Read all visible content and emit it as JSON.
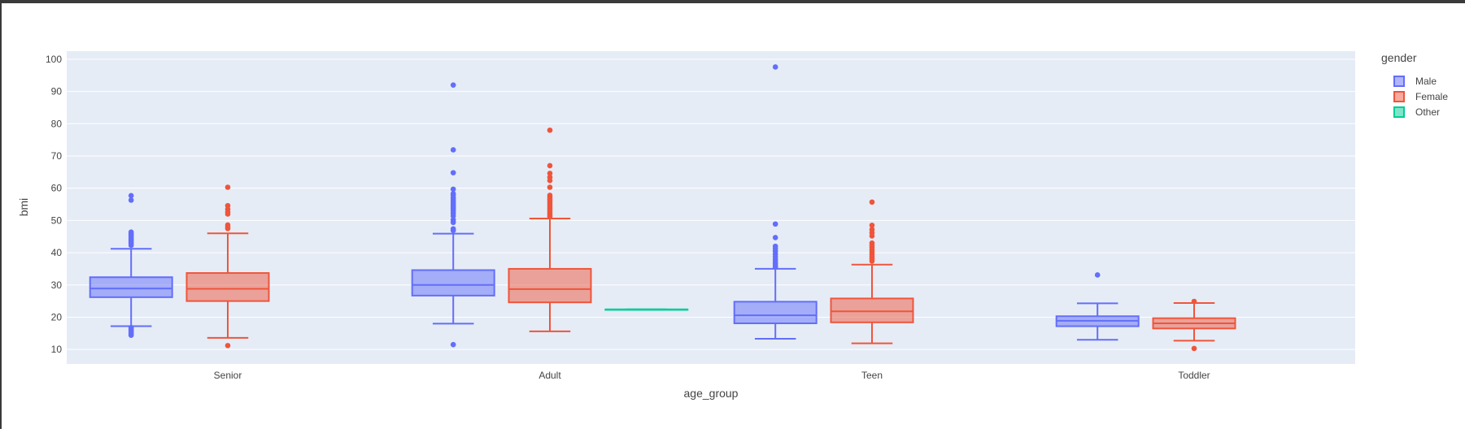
{
  "chart_data": {
    "type": "box",
    "xlabel": "age_group",
    "ylabel": "bmi",
    "yticks": [
      10,
      20,
      30,
      40,
      50,
      60,
      70,
      80,
      90,
      100
    ],
    "ylim": [
      5.5,
      102.5
    ],
    "grid": true,
    "categories": [
      "Senior",
      "Adult",
      "Teen",
      "Toddler"
    ],
    "legend": {
      "title": "gender",
      "position": "right",
      "entries": [
        "Male",
        "Female",
        "Other"
      ]
    },
    "series": [
      {
        "name": "Male",
        "color": "#636efa",
        "boxes": [
          {
            "category": "Senior",
            "min": 17.2,
            "q1": 26.2,
            "median": 28.9,
            "q3": 32.4,
            "max": 41.2,
            "outliers": [
              57.7,
              56.3,
              46.4,
              45.9,
              45.5,
              45.2,
              44.8,
              44.3,
              43.9,
              43.4,
              42.9,
              42.3,
              16.8,
              16.4,
              16.0,
              15.6,
              15.2,
              14.8,
              14.4
            ]
          },
          {
            "category": "Adult",
            "min": 18.0,
            "q1": 26.7,
            "median": 30.0,
            "q3": 34.6,
            "max": 45.9,
            "outliers": [
              92.0,
              71.9,
              64.8,
              59.7,
              58.3,
              57.8,
              57.0,
              56.4,
              55.8,
              55.2,
              54.7,
              54.1,
              53.6,
              53.0,
              52.2,
              51.4,
              50.2,
              49.4,
              47.4,
              46.9,
              11.5
            ]
          },
          {
            "category": "Teen",
            "min": 13.3,
            "q1": 18.1,
            "median": 20.6,
            "q3": 24.8,
            "max": 35.0,
            "outliers": [
              97.6,
              48.9,
              44.7,
              42.0,
              41.3,
              40.5,
              39.6,
              38.8,
              38.0,
              37.3,
              36.6,
              36.0,
              35.5
            ]
          },
          {
            "category": "Toddler",
            "min": 13.0,
            "q1": 17.2,
            "median": 18.9,
            "q3": 20.3,
            "max": 24.3,
            "outliers": [
              33.1
            ]
          }
        ]
      },
      {
        "name": "Female",
        "color": "#ef553b",
        "boxes": [
          {
            "category": "Senior",
            "min": 13.6,
            "q1": 25.0,
            "median": 28.8,
            "q3": 33.7,
            "max": 46.0,
            "outliers": [
              60.3,
              54.6,
              53.5,
              52.6,
              52.0,
              48.6,
              48.0,
              47.5,
              11.2
            ]
          },
          {
            "category": "Adult",
            "min": 15.6,
            "q1": 24.6,
            "median": 28.7,
            "q3": 35.0,
            "max": 50.6,
            "outliers": [
              78.0,
              67.0,
              64.6,
              63.4,
              62.4,
              60.3,
              57.8,
              57.2,
              56.6,
              56.0,
              55.4,
              54.8,
              54.2,
              53.6,
              53.0,
              52.4,
              51.8,
              51.2
            ]
          },
          {
            "category": "Teen",
            "min": 11.9,
            "q1": 18.4,
            "median": 21.8,
            "q3": 25.8,
            "max": 36.3,
            "outliers": [
              55.7,
              48.5,
              47.2,
              46.2,
              45.2,
              43.0,
              42.3,
              41.6,
              40.9,
              40.2,
              39.5,
              38.8,
              38.1,
              37.4
            ]
          },
          {
            "category": "Toddler",
            "min": 12.7,
            "q1": 16.5,
            "median": 18.1,
            "q3": 19.7,
            "max": 24.4,
            "outliers": [
              24.9,
              10.3
            ]
          }
        ]
      },
      {
        "name": "Other",
        "color": "#00cc96",
        "boxes": [
          {
            "category": "Adult",
            "min": 22.4,
            "q1": 22.4,
            "median": 22.4,
            "q3": 22.4,
            "max": 22.4,
            "outliers": []
          }
        ]
      }
    ]
  }
}
